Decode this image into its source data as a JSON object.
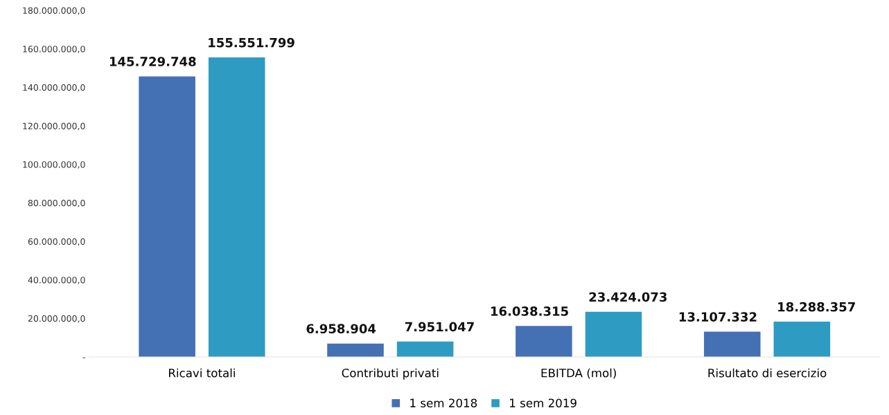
{
  "chart_data": {
    "type": "bar",
    "categories": [
      "Ricavi totali",
      "Contributi privati",
      "EBITDA (mol)",
      "Risultato di esercizio"
    ],
    "series": [
      {
        "name": "1 sem 2018",
        "color": "#4470b4",
        "values": [
          145729748,
          6958904,
          16038315,
          13107332
        ],
        "value_labels": [
          "145.729.748",
          "6.958.904",
          "16.038.315",
          "13.107.332"
        ]
      },
      {
        "name": "1 sem 2019",
        "color": "#2e9cc2",
        "values": [
          155551799,
          7951047,
          23424073,
          18288357
        ],
        "value_labels": [
          "155.551.799",
          "7.951.047",
          "23.424.073",
          "18.288.357"
        ]
      }
    ],
    "ylim": [
      0,
      180000000
    ],
    "yticks": [
      {
        "value": 0,
        "label": "-"
      },
      {
        "value": 20000000,
        "label": "20.000.000,0"
      },
      {
        "value": 40000000,
        "label": "40.000.000,0"
      },
      {
        "value": 60000000,
        "label": "60.000.000,0"
      },
      {
        "value": 80000000,
        "label": "80.000.000,0"
      },
      {
        "value": 100000000,
        "label": "100.000.000,0"
      },
      {
        "value": 120000000,
        "label": "120.000.000,0"
      },
      {
        "value": 140000000,
        "label": "140.000.000,0"
      },
      {
        "value": 160000000,
        "label": "160.000.000,0"
      },
      {
        "value": 180000000,
        "label": "180.000.000,0"
      }
    ],
    "grid": false,
    "legend": "bottom"
  }
}
